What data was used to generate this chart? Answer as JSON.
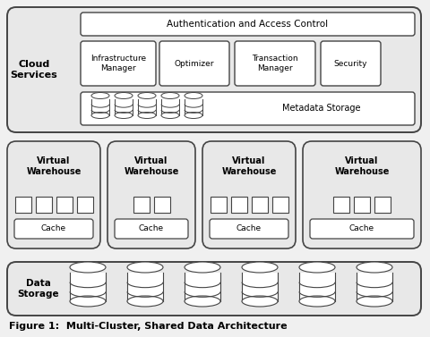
{
  "bg_color": "#f0f0f0",
  "title": "Figure 1:  Multi-Cluster, Shared Data Architecture",
  "cloud_label": "Cloud\nServices",
  "auth_text": "Authentication and Access Control",
  "services": [
    "Infrastructure\nManager",
    "Optimizer",
    "Transaction\nManager",
    "Security"
  ],
  "metadata_text": "Metadata Storage",
  "vw_label": "Virtual\nWarehouse",
  "cache_text": "Cache",
  "data_storage_label": "Data\nStorage",
  "outer_bg": "#e8e8e8",
  "box_bg": "#ffffff",
  "edge_color": "#444444",
  "vw_counts": [
    4,
    2,
    4,
    3
  ],
  "meta_cyl_count": 5,
  "ds_cyl_count": 6
}
